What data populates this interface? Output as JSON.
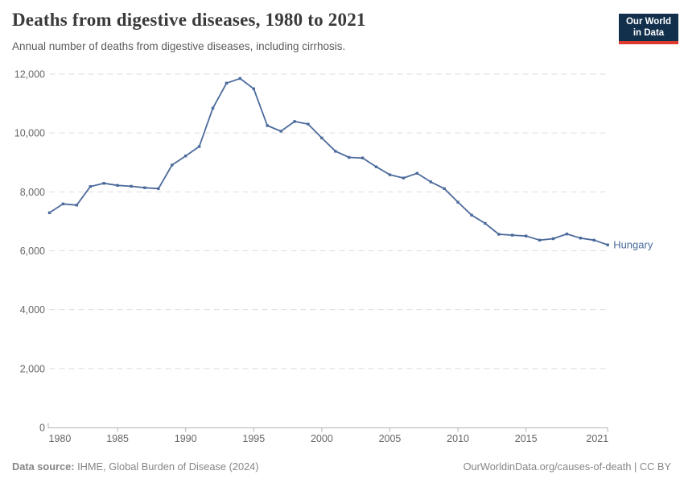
{
  "header": {
    "title": "Deaths from digestive diseases, 1980 to 2021",
    "subtitle": "Annual number of deaths from digestive diseases, including cirrhosis.",
    "logo": {
      "line1": "Our World",
      "line2": "in Data"
    }
  },
  "chart_data": {
    "type": "line",
    "title": "Deaths from digestive diseases, 1980 to 2021",
    "entity": "Hungary",
    "xlabel": "",
    "ylabel": "",
    "xlim": [
      1980,
      2021
    ],
    "ylim": [
      0,
      12000
    ],
    "grid": "horizontal-dashed",
    "legend": "end-of-line-label",
    "x": [
      1980,
      1981,
      1982,
      1983,
      1984,
      1985,
      1986,
      1987,
      1988,
      1989,
      1990,
      1991,
      1992,
      1993,
      1994,
      1995,
      1996,
      1997,
      1998,
      1999,
      2000,
      2001,
      2002,
      2003,
      2004,
      2005,
      2006,
      2007,
      2008,
      2009,
      2010,
      2011,
      2012,
      2013,
      2014,
      2015,
      2016,
      2017,
      2018,
      2019,
      2020,
      2021
    ],
    "series": [
      {
        "name": "Hungary",
        "color": "#4C6B9C",
        "values": [
          7290,
          7590,
          7550,
          8180,
          8290,
          8220,
          8190,
          8140,
          8110,
          8910,
          9220,
          9540,
          10840,
          11690,
          11850,
          11500,
          10250,
          10060,
          10390,
          10300,
          9830,
          9380,
          9170,
          9150,
          8850,
          8580,
          8470,
          8630,
          8340,
          8110,
          7650,
          7210,
          6930,
          6560,
          6530,
          6500,
          6360,
          6410,
          6570,
          6430,
          6360,
          6200
        ]
      }
    ],
    "yticks": {
      "values": [
        0,
        2000,
        4000,
        6000,
        8000,
        10000,
        12000
      ],
      "labels": [
        "0",
        "2,000",
        "4,000",
        "6,000",
        "8,000",
        "10,000",
        "12,000"
      ]
    },
    "xticks": {
      "values": [
        1980,
        1985,
        1990,
        1995,
        2000,
        2005,
        2010,
        2015,
        2021
      ],
      "labels": [
        "1980",
        "1985",
        "1990",
        "1995",
        "2000",
        "2005",
        "2010",
        "2015",
        "2021"
      ]
    }
  },
  "colors": {
    "line": "#4C6B9C",
    "grid": "#dddddd",
    "axis": "#b3b3b3",
    "tick_label": "#666666",
    "logo_bg": "#12304c",
    "logo_stripe": "#dc3a2f"
  },
  "footer": {
    "source_label": "Data source:",
    "source_text": " IHME, Global Burden of Disease (2024)",
    "link_text": "OurWorldinData.org/causes-of-death | CC BY"
  }
}
